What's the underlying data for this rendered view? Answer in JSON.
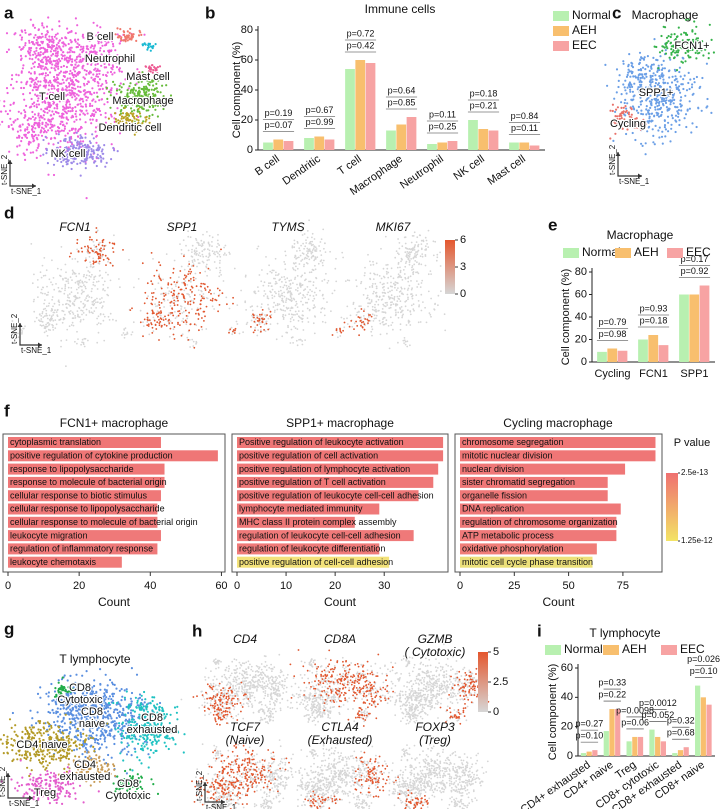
{
  "chart_data": [
    {
      "type": "tsne",
      "panel": "a",
      "xlabel": "t-SNE_1",
      "ylabel": "t-SNE_2",
      "clusters": [
        {
          "label": [
            "T cell"
          ],
          "color": "#ee62dc"
        },
        {
          "label": [
            "B cell"
          ],
          "color": "#f0786c"
        },
        {
          "label": [
            "Neutrophil"
          ],
          "color": "#19b9d2"
        },
        {
          "label": [
            "Mast cell"
          ],
          "color": "#ec5a92"
        },
        {
          "label": [
            "Macrophage"
          ],
          "color": "#66bb3a"
        },
        {
          "label": [
            "Dendritic cell"
          ],
          "color": "#b9a222"
        },
        {
          "label": [
            "NK cell"
          ],
          "color": "#9d8ae8"
        }
      ]
    },
    {
      "type": "bar",
      "panel": "b",
      "title": "Immune cells",
      "ylabel": "Cell component (%)",
      "categories": [
        "B cell",
        "Dendritic",
        "T cell",
        "Macrophage",
        "Neutrophil",
        "NK cell",
        "Mast cell"
      ],
      "series": [
        {
          "name": "Normal",
          "color": "#b8f0b0",
          "values": [
            5,
            8,
            54,
            13,
            4,
            20,
            5
          ]
        },
        {
          "name": "AEH",
          "color": "#f8bf6e",
          "values": [
            7,
            9,
            60,
            17,
            5,
            14,
            5
          ]
        },
        {
          "name": "EEC",
          "color": "#f7a3a3",
          "values": [
            6,
            7,
            58,
            22,
            6,
            13,
            3
          ]
        }
      ],
      "ylim": [
        0,
        80
      ],
      "yticks": [
        0,
        20,
        40,
        60,
        80
      ],
      "legend": "right",
      "annotations": [
        [
          "p=0.19",
          "p=0.07"
        ],
        [
          "p=0.67",
          "p=0.99"
        ],
        [
          "p=0.72",
          "p=0.42"
        ],
        [
          "p=0.64",
          "p=0.85"
        ],
        [
          "p=0.11",
          "p=0.25"
        ],
        [
          "p=0.18",
          "p=0.21"
        ],
        [
          "p=0.84",
          "p=0.11"
        ]
      ]
    },
    {
      "type": "tsne",
      "panel": "c",
      "title": "Macrophage",
      "xlabel": "t-SNE_1",
      "ylabel": "t-SNE_2",
      "clusters": [
        {
          "label": [
            "SPP1+"
          ],
          "color": "#6b9fe6"
        },
        {
          "label": [
            "FCN1+"
          ],
          "color": "#35b24a"
        },
        {
          "label": [
            "Cycling"
          ],
          "color": "#e8716a"
        }
      ]
    },
    {
      "type": "feature",
      "panel": "d",
      "xlabel": "t-SNE_1",
      "ylabel": "t-SNE_2",
      "genes": [
        [
          "FCN1"
        ],
        [
          "SPP1"
        ],
        [
          "TYMS"
        ],
        [
          "MKI67"
        ]
      ],
      "clim": [
        0,
        6
      ],
      "cticks": [
        0,
        3,
        6
      ],
      "colors": [
        "#d6d6d6",
        "#e4572e"
      ]
    },
    {
      "type": "bar",
      "panel": "e",
      "title": "Macrophage",
      "ylabel": "Cell component (%)",
      "categories": [
        "Cycling",
        "FCN1",
        "SPP1"
      ],
      "series": [
        {
          "name": "Normal",
          "color": "#b8f0b0",
          "values": [
            9,
            20,
            60
          ]
        },
        {
          "name": "AEH",
          "color": "#f8bf6e",
          "values": [
            12,
            24,
            60
          ]
        },
        {
          "name": "EEC",
          "color": "#f7a3a3",
          "values": [
            10,
            15,
            68
          ]
        }
      ],
      "ylim": [
        0,
        80
      ],
      "yticks": [
        0,
        20,
        40,
        60,
        80
      ],
      "legend": "top",
      "annotations": [
        [
          "p=0.79",
          "p=0.98"
        ],
        [
          "p=0.93",
          "p=0.18"
        ],
        [
          "p=0.17",
          "p=0.92"
        ]
      ]
    },
    {
      "type": "hbar",
      "panel": "f",
      "title": "FCN1+ macrophage",
      "xlabel": "Count",
      "xlim": [
        0,
        61
      ],
      "xticks": [
        0,
        20,
        40,
        60
      ],
      "categories": [
        "cytoplasmic translation",
        "positive regulation of cytokine production",
        "response to lipopolysaccharide",
        "response to molecule of bacterial origin",
        "cellular response to biotic stimulus",
        "cellular response to lipopolysaccharide",
        "cellular response to molecule of bacterial origin",
        "leukocyte migration",
        "regulation of inflammatory response",
        "leukocyte chemotaxis"
      ],
      "values": [
        43,
        59,
        44,
        44,
        43,
        42,
        42,
        43,
        42,
        32
      ],
      "colors": [
        "#ef7676",
        "#ef7676",
        "#ef7777",
        "#ef7777",
        "#ef7878",
        "#ef7878",
        "#ef7878",
        "#ef7979",
        "#ef7979",
        "#f07b79"
      ]
    },
    {
      "type": "hbar",
      "title": "SPP1+  macrophage",
      "xlabel": "Count",
      "xlim": [
        0,
        43
      ],
      "xticks": [
        0,
        10,
        20,
        30
      ],
      "categories": [
        "Positive regulation of leukocyte activation",
        "positive regulation of cell activation",
        "positive regulation of lymphocyte activation",
        "positive regulation of T cell activation",
        "positive regulation of leukocyte cell-cell adhesion",
        "lymphocyte mediated immunity",
        "MHC class II protein complex assembly",
        "regulation of leukocyte cell-cell adhesion",
        "regulation of leukocyte differentiation",
        "positive regulation of cell-cell adhesion"
      ],
      "values": [
        42,
        42,
        41,
        40,
        37,
        29,
        24,
        36,
        29,
        31
      ],
      "colors": [
        "#ef7676",
        "#ef7676",
        "#ef7777",
        "#ef7777",
        "#ef7878",
        "#ef7878",
        "#ef7878",
        "#ef7979",
        "#ef7a79",
        "#f3e27a"
      ]
    },
    {
      "type": "hbar",
      "title": "Cycling  macrophage",
      "xlabel": "Count",
      "xlim": [
        0,
        93
      ],
      "xticks": [
        0,
        25,
        50,
        75
      ],
      "categories": [
        "chromosome segregation",
        "mitotic nuclear division",
        "nuclear division",
        "sister chromatid segregation",
        "organelle fission",
        "DNA replication",
        "regulation of chromosome organization",
        "ATP metabolic process",
        "oxidative phosphorylation",
        "mitotic cell cycle phase transition"
      ],
      "values": [
        90,
        90,
        76,
        68,
        68,
        74,
        72,
        72,
        63,
        61
      ],
      "colors": [
        "#ef7676",
        "#ef7676",
        "#ef7777",
        "#ef7777",
        "#ef7878",
        "#ef7878",
        "#ef7979",
        "#ef7979",
        "#f07d78",
        "#ece07a"
      ]
    },
    {
      "type": "colorbar",
      "title": "P value",
      "lim": [
        2.5e-13,
        1.25e-12
      ],
      "ticks": [
        2.5e-13,
        1.25e-12
      ],
      "colors": [
        "#ef7070",
        "#f3e466"
      ]
    },
    {
      "type": "tsne",
      "panel": "g",
      "title": "T lymphocyte",
      "xlabel": "t-SNE_1",
      "ylabel": "t-SNE_2",
      "clusters": [
        {
          "label": [
            "CD8",
            "naive"
          ],
          "color": "#5a8fe0"
        },
        {
          "label": [
            "CD8",
            "exhausted"
          ],
          "color": "#1fc2c2"
        },
        {
          "label": [
            "CD4 naive"
          ],
          "color": "#b39a26"
        },
        {
          "label": [
            "CD4",
            "exhausted"
          ],
          "color": "#c89b55"
        },
        {
          "label": [
            "Treg"
          ],
          "color": "#e35dcc"
        },
        {
          "label": [
            "CD8",
            "Cytotoxic"
          ],
          "color": "#21ad49"
        },
        {
          "label": [
            "CD8",
            "Cytotoxic"
          ],
          "color": "#21ad49"
        }
      ]
    },
    {
      "type": "feature",
      "panel": "h",
      "xlabel": "t-SNE_1",
      "ylabel": "t-SNE_2",
      "genes": [
        [
          "CD4"
        ],
        [
          "CD8A"
        ],
        [
          "GZMB",
          "( Cytotoxic)"
        ],
        [
          "TCF7",
          "(Naive)"
        ],
        [
          "CTLA4",
          "(Exhausted)"
        ],
        [
          "FOXP3",
          "(Treg)"
        ]
      ],
      "clim": [
        0,
        5
      ],
      "cticks": [
        0,
        2.5,
        5
      ],
      "colors": [
        "#d6d6d6",
        "#e4572e"
      ]
    },
    {
      "type": "bar",
      "panel": "i",
      "title": "T lymphocyte",
      "ylabel": "Cell component (%)",
      "categories": [
        "CD4+ exhausted",
        "CD4+ naive",
        "Treg",
        "CD8+ cytotoxic",
        "CD8+ exhausted",
        "CD8+ naive"
      ],
      "series": [
        {
          "name": "Normal",
          "color": "#b8f0b0",
          "values": [
            2,
            17,
            10,
            18,
            2,
            48
          ]
        },
        {
          "name": "AEH",
          "color": "#f8bf6e",
          "values": [
            3,
            32,
            13,
            13,
            4,
            40
          ]
        },
        {
          "name": "EEC",
          "color": "#f7a3a3",
          "values": [
            4,
            32,
            13,
            10,
            6,
            35
          ]
        }
      ],
      "ylim": [
        0,
        60
      ],
      "yticks": [
        0,
        20,
        40,
        60
      ],
      "legend": "top",
      "annotations": [
        [
          "p=0.27",
          "p=0.10"
        ],
        [
          "p=0.33",
          "p=0.22"
        ],
        [
          "p=0.0098",
          "p=0.06"
        ],
        [
          "p=0.0012",
          "p=0.052"
        ],
        [
          "p=0.32",
          "p=0.68"
        ],
        [
          "p=0.026",
          "p=0.10"
        ]
      ]
    }
  ]
}
